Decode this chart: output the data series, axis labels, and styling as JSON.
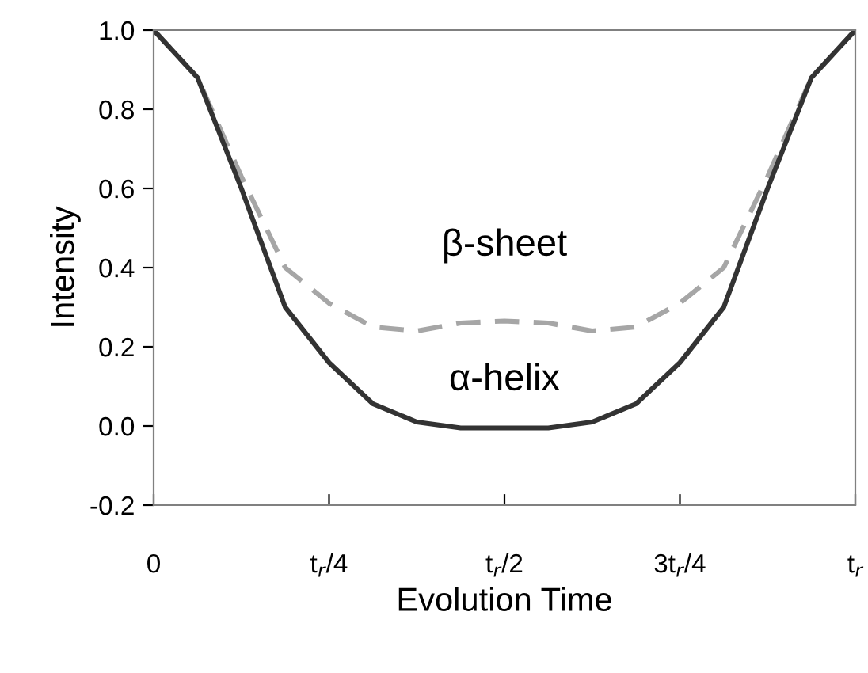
{
  "chart_data": {
    "type": "line",
    "xlabel": "Evolution Time",
    "ylabel": "Intensity",
    "categories": [
      "0",
      null,
      null,
      null,
      "t$_{r}$/4",
      null,
      null,
      null,
      "t$_{r}$/2",
      null,
      null,
      null,
      "3t$_{r}$/4",
      null,
      null,
      null,
      "t$_{r}$"
    ],
    "series": [
      {
        "name": "β-sheet",
        "color": "#a6a6a6",
        "line_style": "dashed",
        "values": [
          1.0,
          0.88,
          0.63,
          0.4,
          0.31,
          0.25,
          0.24,
          0.26,
          0.265,
          0.26,
          0.24,
          0.25,
          0.31,
          0.4,
          0.63,
          0.88,
          1.0
        ]
      },
      {
        "name": "α-helix",
        "color": "#333333",
        "line_style": "solid",
        "values": [
          1.0,
          0.88,
          0.6,
          0.3,
          0.16,
          0.056,
          0.01,
          -0.005,
          -0.005,
          -0.005,
          0.01,
          0.056,
          0.16,
          0.3,
          0.6,
          0.88,
          1.0
        ]
      }
    ],
    "ylim": [
      -0.2,
      1.0
    ],
    "yticks": [
      -0.2,
      {
        "value": 0,
        "label": "0.0"
      },
      0.2,
      0.4,
      0.6,
      0.8,
      {
        "value": 1,
        "label": "1.0"
      }
    ],
    "grid": false,
    "legend": false,
    "marker": "none"
  }
}
